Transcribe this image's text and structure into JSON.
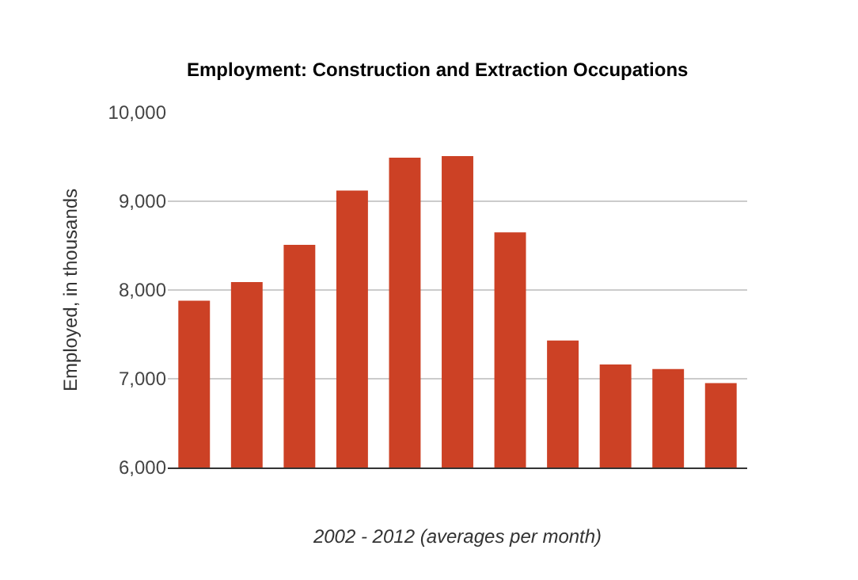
{
  "chart_data": {
    "type": "bar",
    "title": "Employment: Construction and Extraction Occupations",
    "xlabel": "2002 - 2012 (averages per month)",
    "ylabel": "Employed, in thousands",
    "categories": [
      null,
      null,
      null,
      null,
      null,
      null,
      null,
      null,
      null,
      null,
      null
    ],
    "values": [
      7880,
      8090,
      8510,
      9120,
      9490,
      9510,
      8650,
      7430,
      7160,
      7110,
      6950
    ],
    "color": "#cc4125",
    "ylim": [
      6000,
      10000
    ],
    "yticks": [
      {
        "value": 6000,
        "label": "6,000"
      },
      {
        "value": 7000,
        "label": "7,000"
      },
      {
        "value": 8000,
        "label": "8,000"
      },
      {
        "value": 9000,
        "label": "9,000"
      },
      {
        "value": 10000,
        "label": "10,000"
      }
    ],
    "grid": "y",
    "legend": false
  }
}
